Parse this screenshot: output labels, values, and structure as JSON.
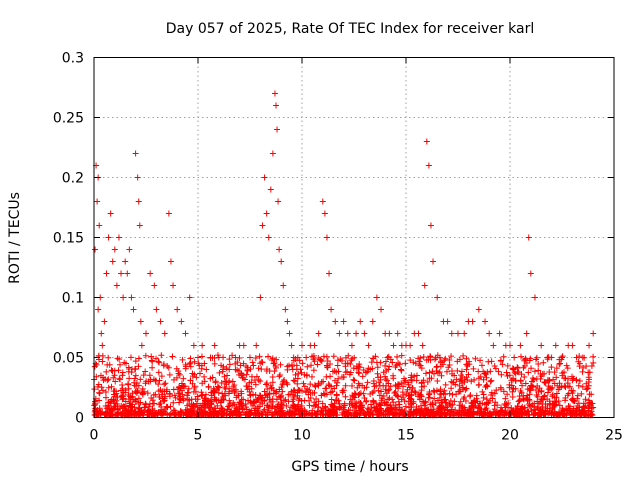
{
  "chart_data": {
    "type": "scatter",
    "title": "Day 057 of 2025, Rate Of TEC Index for receiver karl",
    "xlabel": "GPS time / hours",
    "ylabel": "ROTI / TECUs",
    "xlim": [
      0,
      25
    ],
    "ylim": [
      0,
      0.3
    ],
    "xticks": [
      0,
      5,
      10,
      15,
      20,
      25
    ],
    "xtick_labels": [
      "0",
      "5",
      "10",
      "15",
      "20",
      "25"
    ],
    "yticks": [
      0,
      0.05,
      0.1,
      0.15,
      0.2,
      0.25,
      0.3
    ],
    "ytick_labels": [
      "0",
      "0.05",
      "0.1",
      "0.15",
      "0.2",
      "0.25",
      "0.3"
    ],
    "grid": true,
    "marker": "+",
    "color": "#ff0000",
    "series": [
      {
        "x": [
          0.05,
          0.1,
          0.15,
          0.2,
          0.2,
          0.25,
          0.3,
          0.35,
          0.4,
          0.5,
          0.6,
          0.7,
          0.8,
          0.9,
          1.0,
          1.1,
          1.2,
          1.3,
          1.4,
          1.5,
          1.6,
          1.7,
          1.8,
          1.9,
          2.0,
          2.1,
          2.15,
          2.2,
          2.25,
          2.3,
          2.5,
          2.7,
          2.9,
          3.0,
          3.2,
          3.4,
          3.6,
          3.7,
          3.8,
          4.0,
          4.2,
          4.4,
          4.6,
          4.8,
          5.0,
          5.2,
          5.4,
          5.6,
          5.8,
          6.0,
          6.2,
          6.5,
          6.8,
          7.0,
          7.2,
          7.5,
          7.8,
          8.0,
          8.1,
          8.2,
          8.3,
          8.4,
          8.5,
          8.6,
          8.7,
          8.75,
          8.8,
          8.85,
          8.9,
          9.0,
          9.1,
          9.2,
          9.3,
          9.4,
          9.5,
          9.6,
          9.8,
          10.0,
          10.2,
          10.4,
          10.6,
          10.8,
          11.0,
          11.1,
          11.2,
          11.3,
          11.4,
          11.6,
          11.8,
          12.0,
          12.2,
          12.4,
          12.6,
          12.8,
          13.0,
          13.2,
          13.4,
          13.6,
          13.8,
          14.0,
          14.2,
          14.4,
          14.6,
          14.8,
          15.0,
          15.2,
          15.4,
          15.6,
          15.8,
          15.9,
          16.0,
          16.1,
          16.2,
          16.3,
          16.5,
          16.8,
          17.0,
          17.2,
          17.5,
          17.8,
          18.0,
          18.2,
          18.5,
          18.8,
          19.0,
          19.2,
          19.5,
          19.8,
          20.0,
          20.2,
          20.5,
          20.8,
          20.9,
          21.0,
          21.2,
          21.5,
          21.8,
          22.0,
          22.2,
          22.5,
          22.8,
          23.0,
          23.2,
          23.5,
          23.8,
          24.0
        ],
        "y": [
          0.14,
          0.21,
          0.18,
          0.2,
          0.09,
          0.16,
          0.1,
          0.07,
          0.06,
          0.08,
          0.12,
          0.15,
          0.17,
          0.13,
          0.14,
          0.11,
          0.15,
          0.12,
          0.1,
          0.13,
          0.12,
          0.14,
          0.1,
          0.09,
          0.22,
          0.2,
          0.18,
          0.16,
          0.08,
          0.06,
          0.07,
          0.12,
          0.11,
          0.09,
          0.08,
          0.07,
          0.17,
          0.13,
          0.11,
          0.09,
          0.08,
          0.07,
          0.1,
          0.06,
          0.05,
          0.06,
          0.04,
          0.05,
          0.06,
          0.05,
          0.04,
          0.04,
          0.05,
          0.06,
          0.06,
          0.05,
          0.06,
          0.1,
          0.16,
          0.2,
          0.17,
          0.15,
          0.19,
          0.22,
          0.27,
          0.26,
          0.24,
          0.18,
          0.14,
          0.13,
          0.11,
          0.09,
          0.08,
          0.07,
          0.06,
          0.05,
          0.05,
          0.06,
          0.05,
          0.06,
          0.06,
          0.07,
          0.18,
          0.17,
          0.15,
          0.12,
          0.09,
          0.08,
          0.07,
          0.08,
          0.07,
          0.06,
          0.07,
          0.08,
          0.07,
          0.06,
          0.08,
          0.1,
          0.09,
          0.07,
          0.07,
          0.06,
          0.07,
          0.06,
          0.06,
          0.06,
          0.07,
          0.07,
          0.06,
          0.11,
          0.23,
          0.21,
          0.16,
          0.13,
          0.1,
          0.08,
          0.08,
          0.07,
          0.07,
          0.07,
          0.08,
          0.08,
          0.09,
          0.08,
          0.07,
          0.06,
          0.07,
          0.06,
          0.06,
          0.05,
          0.06,
          0.07,
          0.15,
          0.12,
          0.1,
          0.06,
          0.05,
          0.05,
          0.06,
          0.05,
          0.06,
          0.06,
          0.05,
          0.05,
          0.06,
          0.07
        ]
      }
    ]
  }
}
